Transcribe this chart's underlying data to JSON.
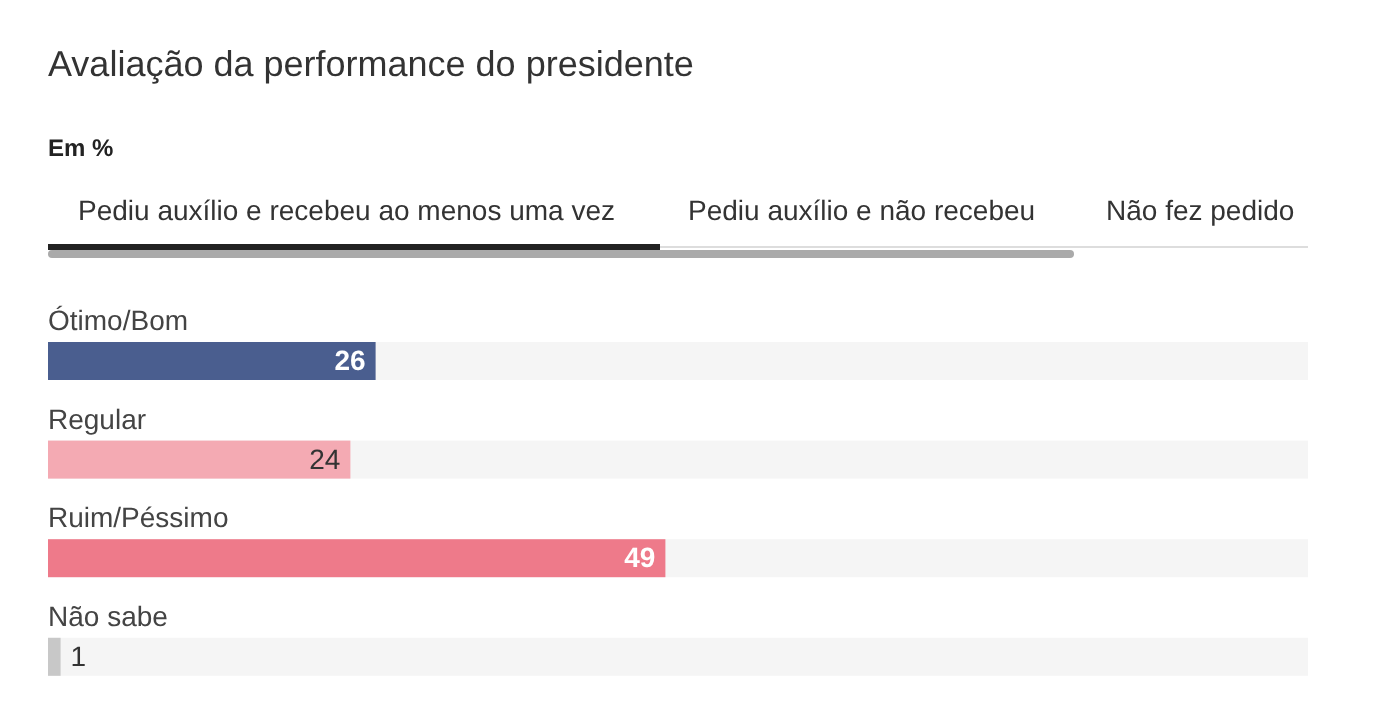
{
  "chart_data": {
    "type": "bar",
    "orientation": "horizontal",
    "title": "Avaliação da performance do presidente",
    "subtitle": "Em %",
    "annotations": [
      "Pediu auxílio e recebeu ao menos uma vez",
      "Pediu auxílio e não recebeu",
      "Não fez pedido"
    ],
    "categories": [
      "Ótimo/Bom",
      "Regular",
      "Ruim/Péssimo",
      "Não sabe"
    ],
    "values": [
      26,
      24,
      49,
      1
    ],
    "colors": [
      "#4a5e8f",
      "#f4aab3",
      "#ee7a8a",
      "#c8c8c8"
    ],
    "xlim": [
      0,
      100
    ],
    "data_labels": true
  }
}
